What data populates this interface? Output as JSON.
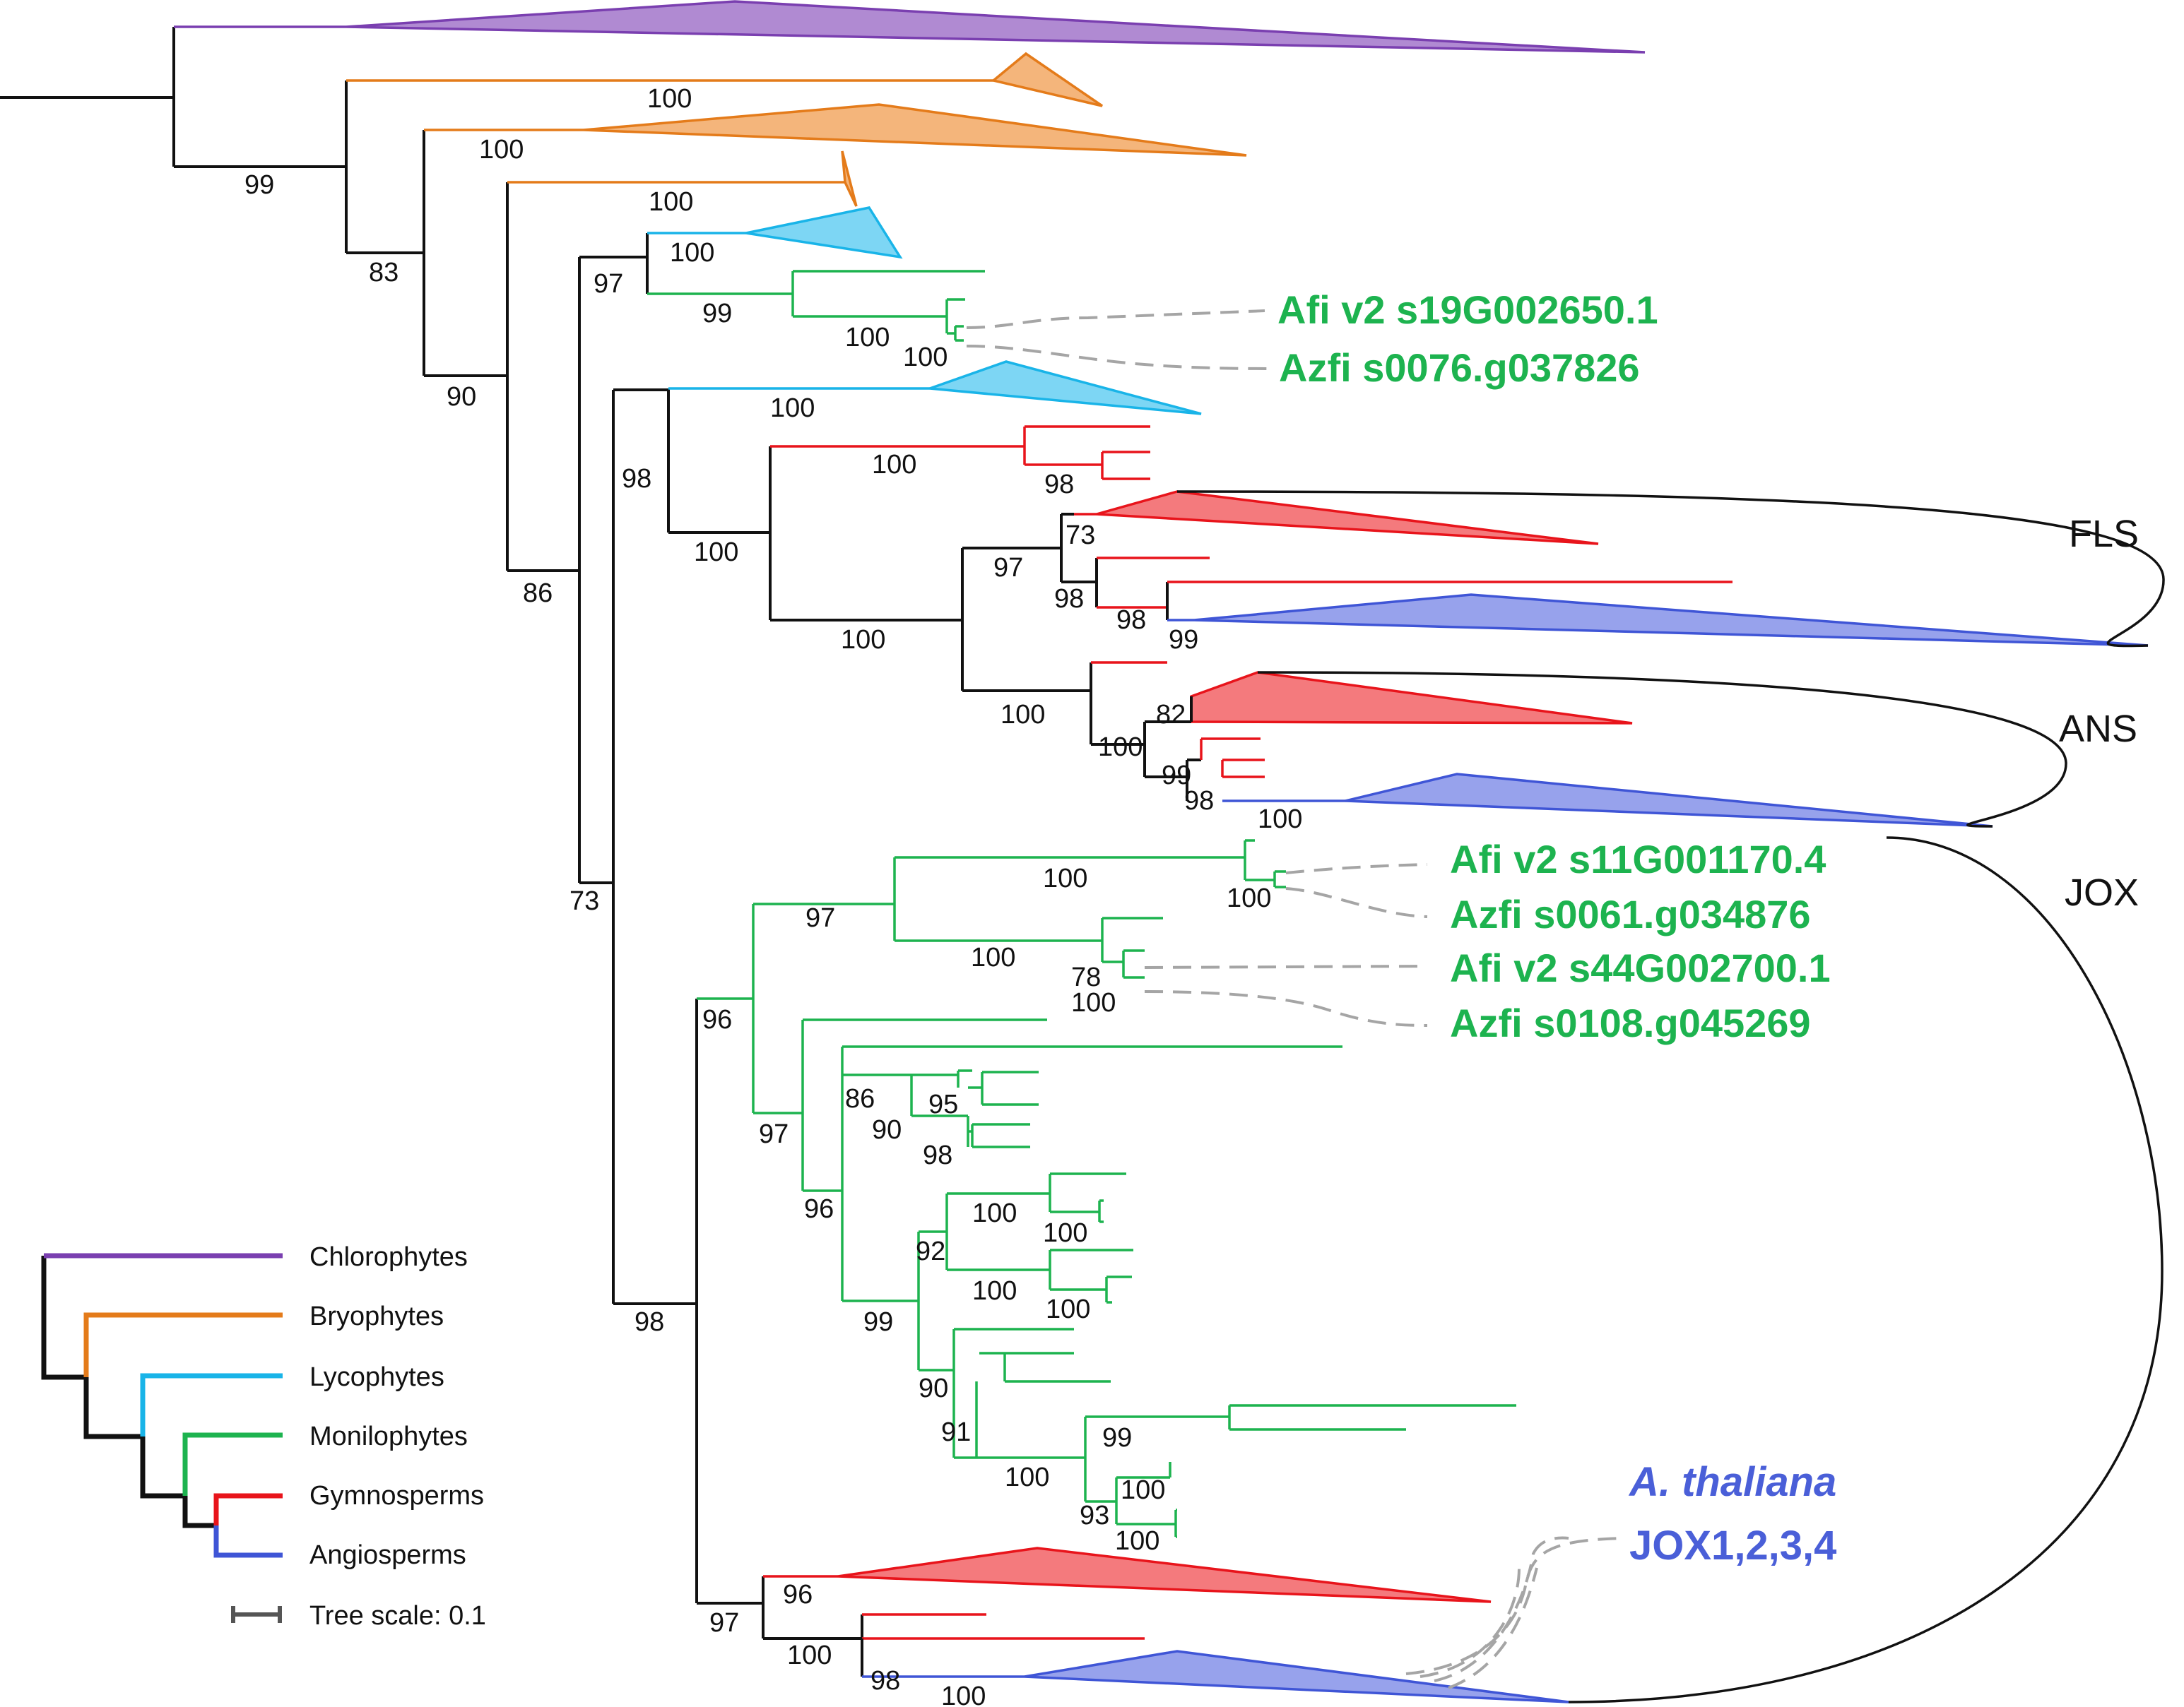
{
  "genes": {
    "afi_s19": "Afi v2 s19G002650.1",
    "azfi_s0076": "Azfi s0076.g037826",
    "afi_s11": "Afi v2 s11G001170.4",
    "azfi_s0061": "Azfi s0061.g034876",
    "afi_s44": "Afi v2 s44G002700.1",
    "azfi_s0108": "Azfi s0108.g045269"
  },
  "clades": {
    "fls": "FLS",
    "ans": "ANS",
    "jox": "JOX"
  },
  "athaliana": {
    "species": "A. thaliana",
    "genes": "JOX1,2,3,4"
  },
  "bootstrap": [
    "99",
    "83",
    "90",
    "86",
    "73",
    "100",
    "100",
    "100",
    "97",
    "100",
    "99",
    "100",
    "100",
    "98",
    "100",
    "100",
    "98",
    "100",
    "100",
    "97",
    "73",
    "98",
    "98",
    "99",
    "100",
    "82",
    "100",
    "99",
    "98",
    "100",
    "98",
    "96",
    "97",
    "97",
    "100",
    "100",
    "100",
    "78",
    "100",
    "96",
    "86",
    "95",
    "90",
    "98",
    "99",
    "92",
    "100",
    "100",
    "100",
    "100",
    "90",
    "91",
    "100",
    "99",
    "100",
    "93",
    "100",
    "97",
    "96",
    "100",
    "98",
    "100"
  ],
  "legend": {
    "items": [
      {
        "label": "Chlorophytes",
        "color": "#7a3fb0"
      },
      {
        "label": "Bryophytes",
        "color": "#e47b1a"
      },
      {
        "label": "Lycophytes",
        "color": "#19b4e8"
      },
      {
        "label": "Monilophytes",
        "color": "#1db34f"
      },
      {
        "label": "Gymnosperms",
        "color": "#e8141b"
      },
      {
        "label": "Angiosperms",
        "color": "#3f55d6"
      }
    ],
    "scale_label": "Tree scale: 0.1"
  },
  "colors": {
    "chlorophytes": "#7a3fb0",
    "bryophytes": "#e47b1a",
    "lycophytes": "#19b4e8",
    "monilophytes": "#1db34f",
    "gymnosperms": "#e8141b",
    "angiosperms": "#3f55d6"
  }
}
